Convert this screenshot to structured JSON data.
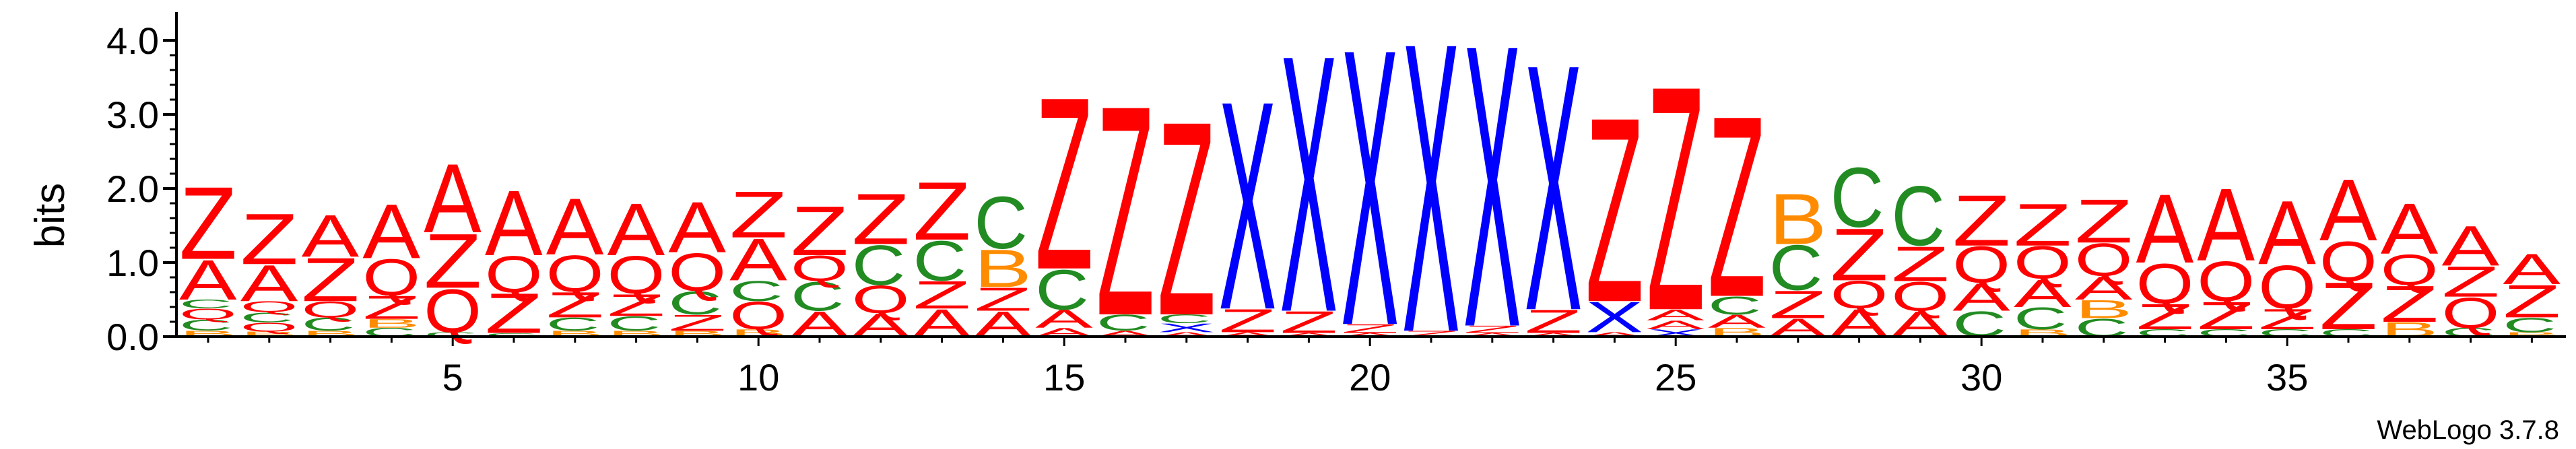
{
  "chart_data": {
    "type": "sequence-logo",
    "ylabel": "bits",
    "ylim": [
      0,
      4.2
    ],
    "y_ticks": [
      "0.0",
      "1.0",
      "2.0",
      "3.0",
      "4.0"
    ],
    "x_ticks": [
      5,
      10,
      15,
      20,
      25,
      30,
      35
    ],
    "positions": 39,
    "footer": "WebLogo 3.7.8",
    "colors": {
      "Z": "#ff0000",
      "A": "#ff0000",
      "Q": "#ff0000",
      "X": "#0000ff",
      "C": "#228b22",
      "B": "#ff8c00"
    },
    "columns": [
      {
        "pos": 1,
        "stack": [
          [
            "B",
            0.08
          ],
          [
            "C",
            0.15
          ],
          [
            "Q",
            0.15
          ],
          [
            "C",
            0.12
          ],
          [
            "A",
            0.55
          ],
          [
            "Z",
            1.0
          ]
        ]
      },
      {
        "pos": 2,
        "stack": [
          [
            "B",
            0.07
          ],
          [
            "Q",
            0.12
          ],
          [
            "C",
            0.14
          ],
          [
            "Q",
            0.15
          ],
          [
            "A",
            0.5
          ],
          [
            "Z",
            0.7
          ]
        ]
      },
      {
        "pos": 3,
        "stack": [
          [
            "B",
            0.08
          ],
          [
            "C",
            0.18
          ],
          [
            "Q",
            0.22
          ],
          [
            "Z",
            0.6
          ],
          [
            "A",
            0.58
          ]
        ]
      },
      {
        "pos": 4,
        "stack": [
          [
            "C",
            0.12
          ],
          [
            "B",
            0.12
          ],
          [
            "Z",
            0.32
          ],
          [
            "Q",
            0.5
          ],
          [
            "A",
            0.75
          ]
        ]
      },
      {
        "pos": 5,
        "stack": [
          [
            "C",
            0.06
          ],
          [
            "Q",
            0.6
          ],
          [
            "Z",
            0.75
          ],
          [
            "A",
            0.95
          ]
        ]
      },
      {
        "pos": 6,
        "stack": [
          [
            "C",
            0.05
          ],
          [
            "Z",
            0.55
          ],
          [
            "Q",
            0.5
          ],
          [
            "A",
            0.9
          ]
        ]
      },
      {
        "pos": 7,
        "stack": [
          [
            "B",
            0.08
          ],
          [
            "C",
            0.18
          ],
          [
            "Z",
            0.35
          ],
          [
            "Q",
            0.5
          ],
          [
            "A",
            0.78
          ]
        ]
      },
      {
        "pos": 8,
        "stack": [
          [
            "B",
            0.08
          ],
          [
            "C",
            0.2
          ],
          [
            "Z",
            0.3
          ],
          [
            "Q",
            0.52
          ],
          [
            "A",
            0.72
          ]
        ]
      },
      {
        "pos": 9,
        "stack": [
          [
            "B",
            0.08
          ],
          [
            "Z",
            0.22
          ],
          [
            "C",
            0.32
          ],
          [
            "Q",
            0.52
          ],
          [
            "A",
            0.7
          ]
        ]
      },
      {
        "pos": 10,
        "stack": [
          [
            "B",
            0.1
          ],
          [
            "Q",
            0.38
          ],
          [
            "C",
            0.28
          ],
          [
            "A",
            0.58
          ],
          [
            "Z",
            0.64
          ]
        ]
      },
      {
        "pos": 11,
        "stack": [
          [
            "A",
            0.35
          ],
          [
            "C",
            0.4
          ],
          [
            "Q",
            0.35
          ],
          [
            "Z",
            0.68
          ]
        ]
      },
      {
        "pos": 12,
        "stack": [
          [
            "A",
            0.32
          ],
          [
            "Q",
            0.38
          ],
          [
            "C",
            0.55
          ],
          [
            "Z",
            0.7
          ]
        ]
      },
      {
        "pos": 13,
        "stack": [
          [
            "A",
            0.38
          ],
          [
            "Z",
            0.38
          ],
          [
            "C",
            0.55
          ],
          [
            "Z",
            0.8
          ]
        ]
      },
      {
        "pos": 14,
        "stack": [
          [
            "A",
            0.35
          ],
          [
            "Z",
            0.32
          ],
          [
            "B",
            0.52
          ],
          [
            "C",
            0.72
          ]
        ]
      },
      {
        "pos": 15,
        "stack": [
          [
            "A",
            0.12
          ],
          [
            "A",
            0.25
          ],
          [
            "C",
            0.55
          ],
          [
            "Z",
            2.38
          ]
        ]
      },
      {
        "pos": 16,
        "stack": [
          [
            "A",
            0.08
          ],
          [
            "C",
            0.22
          ],
          [
            "Z",
            2.9
          ]
        ]
      },
      {
        "pos": 17,
        "stack": [
          [
            "A",
            0.06
          ],
          [
            "X",
            0.12
          ],
          [
            "C",
            0.12
          ],
          [
            "Z",
            2.68
          ]
        ]
      },
      {
        "pos": 18,
        "stack": [
          [
            "A",
            0.06
          ],
          [
            "Z",
            0.32
          ],
          [
            "X",
            2.88
          ]
        ]
      },
      {
        "pos": 19,
        "stack": [
          [
            "A",
            0.05
          ],
          [
            "Z",
            0.3
          ],
          [
            "X",
            3.55
          ]
        ]
      },
      {
        "pos": 20,
        "stack": [
          [
            "A",
            0.05
          ],
          [
            "Z",
            0.12
          ],
          [
            "X",
            3.82
          ]
        ]
      },
      {
        "pos": 21,
        "stack": [
          [
            "Z",
            0.08
          ],
          [
            "X",
            4.0
          ]
        ]
      },
      {
        "pos": 22,
        "stack": [
          [
            "A",
            0.05
          ],
          [
            "Z",
            0.1
          ],
          [
            "X",
            3.9
          ]
        ]
      },
      {
        "pos": 23,
        "stack": [
          [
            "A",
            0.05
          ],
          [
            "Z",
            0.32
          ],
          [
            "X",
            3.4
          ]
        ]
      },
      {
        "pos": 24,
        "stack": [
          [
            "A",
            0.06
          ],
          [
            "X",
            0.42
          ],
          [
            "Z",
            2.55
          ]
        ]
      },
      {
        "pos": 25,
        "stack": [
          [
            "X",
            0.1
          ],
          [
            "A",
            0.12
          ],
          [
            "A",
            0.15
          ],
          [
            "Z",
            3.1
          ]
        ]
      },
      {
        "pos": 26,
        "stack": [
          [
            "B",
            0.12
          ],
          [
            "A",
            0.18
          ],
          [
            "C",
            0.25
          ],
          [
            "Z",
            2.5
          ]
        ]
      },
      {
        "pos": 27,
        "stack": [
          [
            "A",
            0.25
          ],
          [
            "Z",
            0.38
          ],
          [
            "C",
            0.62
          ],
          [
            "B",
            0.7
          ]
        ]
      },
      {
        "pos": 28,
        "stack": [
          [
            "A",
            0.38
          ],
          [
            "Q",
            0.38
          ],
          [
            "Z",
            0.72
          ],
          [
            "C",
            0.82
          ]
        ]
      },
      {
        "pos": 29,
        "stack": [
          [
            "A",
            0.35
          ],
          [
            "Q",
            0.4
          ],
          [
            "Z",
            0.48
          ],
          [
            "C",
            0.82
          ]
        ]
      },
      {
        "pos": 30,
        "stack": [
          [
            "C",
            0.35
          ],
          [
            "A",
            0.38
          ],
          [
            "Q",
            0.5
          ],
          [
            "Z",
            0.7
          ]
        ]
      },
      {
        "pos": 31,
        "stack": [
          [
            "B",
            0.1
          ],
          [
            "C",
            0.3
          ],
          [
            "A",
            0.38
          ],
          [
            "Q",
            0.45
          ],
          [
            "Z",
            0.58
          ]
        ]
      },
      {
        "pos": 32,
        "stack": [
          [
            "C",
            0.25
          ],
          [
            "B",
            0.25
          ],
          [
            "A",
            0.32
          ],
          [
            "Q",
            0.45
          ],
          [
            "Z",
            0.6
          ]
        ]
      },
      {
        "pos": 33,
        "stack": [
          [
            "C",
            0.1
          ],
          [
            "Z",
            0.35
          ],
          [
            "Q",
            0.55
          ],
          [
            "A",
            0.95
          ]
        ]
      },
      {
        "pos": 34,
        "stack": [
          [
            "C",
            0.1
          ],
          [
            "Z",
            0.38
          ],
          [
            "Q",
            0.55
          ],
          [
            "A",
            1.0
          ]
        ]
      },
      {
        "pos": 35,
        "stack": [
          [
            "C",
            0.1
          ],
          [
            "Z",
            0.28
          ],
          [
            "Q",
            0.6
          ],
          [
            "A",
            0.88
          ]
        ]
      },
      {
        "pos": 36,
        "stack": [
          [
            "C",
            0.1
          ],
          [
            "Z",
            0.65
          ],
          [
            "Q",
            0.55
          ],
          [
            "A",
            0.85
          ]
        ]
      },
      {
        "pos": 37,
        "stack": [
          [
            "B",
            0.2
          ],
          [
            "Z",
            0.5
          ],
          [
            "Q",
            0.42
          ],
          [
            "A",
            0.7
          ]
        ]
      },
      {
        "pos": 38,
        "stack": [
          [
            "C",
            0.12
          ],
          [
            "Q",
            0.42
          ],
          [
            "Z",
            0.42
          ],
          [
            "A",
            0.55
          ]
        ]
      },
      {
        "pos": 39,
        "stack": [
          [
            "B",
            0.06
          ],
          [
            "C",
            0.2
          ],
          [
            "Z",
            0.45
          ],
          [
            "A",
            0.42
          ]
        ]
      }
    ]
  }
}
